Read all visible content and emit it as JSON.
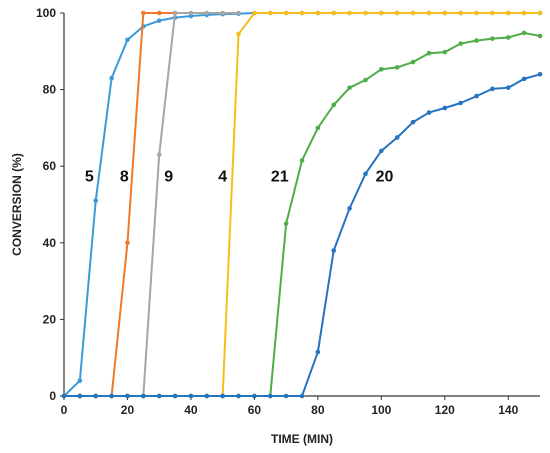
{
  "chart_data": {
    "type": "line",
    "xlabel": "TIME (MIN)",
    "ylabel": "CONVERSION (%)",
    "xlim": [
      0,
      150
    ],
    "ylim": [
      0,
      100
    ],
    "xticks": [
      0,
      20,
      40,
      60,
      80,
      100,
      120,
      140
    ],
    "yticks": [
      0,
      20,
      40,
      60,
      80,
      100
    ],
    "grid": false,
    "legend": "none",
    "series": [
      {
        "name": "5",
        "color": "#3a9ad9",
        "label_at": [
          8,
          56
        ],
        "x": [
          0,
          5,
          10,
          15,
          20,
          25,
          30,
          35,
          40,
          45,
          50,
          55,
          60,
          65,
          70,
          75,
          80,
          85,
          90,
          95,
          100,
          105,
          110,
          115,
          120,
          125,
          130,
          135,
          140,
          145,
          150
        ],
        "y": [
          0,
          4,
          51,
          83,
          93,
          96.5,
          98,
          98.8,
          99.2,
          99.5,
          99.7,
          99.8,
          100,
          100,
          100,
          100,
          100,
          100,
          100,
          100,
          100,
          100,
          100,
          100,
          100,
          100,
          100,
          100,
          100,
          100,
          100
        ]
      },
      {
        "name": "8",
        "color": "#f07a2c",
        "label_at": [
          19,
          56
        ],
        "x": [
          0,
          5,
          10,
          15,
          20,
          25,
          30,
          35
        ],
        "y": [
          0,
          0,
          0,
          0,
          40,
          100,
          100,
          100
        ]
      },
      {
        "name": "9",
        "color": "#a6a6a6",
        "label_at": [
          33,
          56
        ],
        "x": [
          0,
          5,
          10,
          15,
          20,
          25,
          30,
          35,
          40,
          45,
          50,
          55
        ],
        "y": [
          0,
          0,
          0,
          0,
          0,
          0,
          63,
          100,
          100,
          100,
          100,
          100
        ]
      },
      {
        "name": "4",
        "color": "#f5be1d",
        "label_at": [
          50,
          56
        ],
        "x": [
          0,
          5,
          10,
          15,
          20,
          25,
          30,
          35,
          40,
          45,
          50,
          55,
          60,
          65,
          70,
          75,
          80,
          85,
          90,
          95,
          100,
          105,
          110,
          115,
          120,
          125,
          130,
          135,
          140,
          145,
          150
        ],
        "y": [
          0,
          0,
          0,
          0,
          0,
          0,
          0,
          0,
          0,
          0,
          0,
          94.5,
          100,
          100,
          100,
          100,
          100,
          100,
          100,
          100,
          100,
          100,
          100,
          100,
          100,
          100,
          100,
          100,
          100,
          100,
          100
        ]
      },
      {
        "name": "21",
        "color": "#4fad47",
        "label_at": [
          68,
          56
        ],
        "x": [
          0,
          5,
          10,
          15,
          20,
          25,
          30,
          35,
          40,
          45,
          50,
          55,
          60,
          65,
          70,
          75,
          80,
          85,
          90,
          95,
          100,
          105,
          110,
          115,
          120,
          125,
          130,
          135,
          140,
          145,
          150
        ],
        "y": [
          0,
          0,
          0,
          0,
          0,
          0,
          0,
          0,
          0,
          0,
          0,
          0,
          0,
          0,
          45,
          61.5,
          70,
          76,
          80.5,
          82.5,
          85.3,
          85.8,
          87.2,
          89.5,
          89.8,
          92,
          92.8,
          93.3,
          93.6,
          94.8,
          94
        ]
      },
      {
        "name": "20",
        "color": "#2673c2",
        "label_at": [
          101,
          56
        ],
        "x": [
          0,
          5,
          10,
          15,
          20,
          25,
          30,
          35,
          40,
          45,
          50,
          55,
          60,
          65,
          70,
          75,
          80,
          85,
          90,
          95,
          100,
          105,
          110,
          115,
          120,
          125,
          130,
          135,
          140,
          145,
          150
        ],
        "y": [
          0,
          0,
          0,
          0,
          0,
          0,
          0,
          0,
          0,
          0,
          0,
          0,
          0,
          0,
          0,
          0,
          11.5,
          38,
          49,
          58,
          64,
          67.5,
          71.5,
          74,
          75.2,
          76.5,
          78.3,
          80.2,
          80.5,
          82.8,
          84
        ]
      }
    ]
  }
}
